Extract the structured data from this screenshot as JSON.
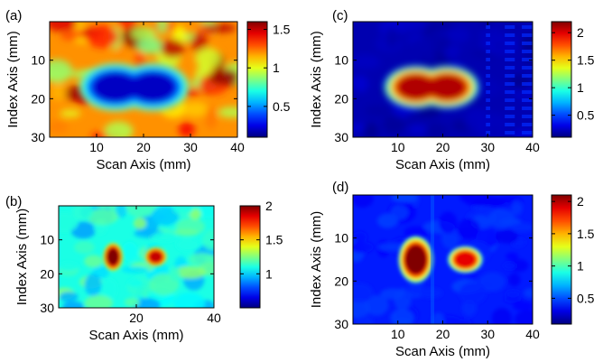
{
  "chart_data": [
    {
      "type": "heatmap",
      "panel_label": "(a)",
      "xlabel": "Scan Axis (mm)",
      "ylabel": "Index Axis (mm)",
      "xlim": [
        0,
        40
      ],
      "ylim": [
        30,
        0
      ],
      "xticks": [
        10,
        20,
        30,
        40
      ],
      "yticks": [
        10,
        20,
        30
      ],
      "colorbar": {
        "range": [
          0.1,
          1.6
        ],
        "ticks": [
          0.5,
          1,
          1.5
        ],
        "tick_labels": [
          "0.5",
          "1",
          "1.5"
        ]
      },
      "background_level": 1.2,
      "features": [
        {
          "shape": "ellipse",
          "cx": 14,
          "cy": 17,
          "rx": 5,
          "ry": 4,
          "level": 0.2
        },
        {
          "shape": "ellipse",
          "cx": 22,
          "cy": 17,
          "rx": 5,
          "ry": 4,
          "level": 0.2
        }
      ]
    },
    {
      "type": "heatmap",
      "panel_label": "(b)",
      "xlabel": "Scan Axis (mm)",
      "ylabel": "Index Axis (mm)",
      "xlim": [
        0,
        40
      ],
      "ylim": [
        30,
        0
      ],
      "xticks": [
        20,
        40
      ],
      "yticks": [
        10,
        20,
        30
      ],
      "colorbar": {
        "range": [
          0.5,
          2.0
        ],
        "ticks": [
          1,
          1.5,
          2
        ],
        "tick_labels": [
          "1",
          "1.5",
          "2"
        ]
      },
      "background_level": 1.1,
      "features": [
        {
          "shape": "ellipse",
          "cx": 14,
          "cy": 15,
          "rx": 1.6,
          "ry": 2.6,
          "level": 2.0
        },
        {
          "shape": "ellipse",
          "cx": 25,
          "cy": 15,
          "rx": 1.8,
          "ry": 1.8,
          "level": 1.9
        }
      ]
    },
    {
      "type": "heatmap",
      "panel_label": "(c)",
      "xlabel": "Scan Axis (mm)",
      "ylabel": "Index Axis (mm)",
      "xlim": [
        0,
        40
      ],
      "ylim": [
        30,
        0
      ],
      "xticks": [
        10,
        20,
        30,
        40
      ],
      "yticks": [
        10,
        20,
        30
      ],
      "colorbar": {
        "range": [
          0.1,
          2.2
        ],
        "ticks": [
          0.5,
          1,
          1.5,
          2
        ],
        "tick_labels": [
          "0.5",
          "1",
          "1.5",
          "2"
        ]
      },
      "background_level": 0.2,
      "features": [
        {
          "shape": "ellipse",
          "cx": 14,
          "cy": 17,
          "rx": 4.5,
          "ry": 3.5,
          "level": 2.1
        },
        {
          "shape": "ellipse",
          "cx": 21,
          "cy": 17,
          "rx": 4.5,
          "ry": 3.5,
          "level": 2.1
        }
      ]
    },
    {
      "type": "heatmap",
      "panel_label": "(d)",
      "xlabel": "Scan Axis (mm)",
      "ylabel": "Index Axis (mm)",
      "xlim": [
        0,
        40
      ],
      "ylim": [
        30,
        0
      ],
      "xticks": [
        10,
        20,
        30,
        40
      ],
      "yticks": [
        10,
        20,
        30
      ],
      "colorbar": {
        "range": [
          0.1,
          2.1
        ],
        "ticks": [
          0.5,
          1,
          1.5,
          2
        ],
        "tick_labels": [
          "0.5",
          "1",
          "1.5",
          "2"
        ]
      },
      "background_level": 0.4,
      "features": [
        {
          "shape": "ellipse",
          "cx": 14,
          "cy": 15,
          "rx": 2.5,
          "ry": 3.5,
          "level": 2.1
        },
        {
          "shape": "ellipse",
          "cx": 25,
          "cy": 15,
          "rx": 2.5,
          "ry": 2.0,
          "level": 1.9
        }
      ]
    }
  ]
}
